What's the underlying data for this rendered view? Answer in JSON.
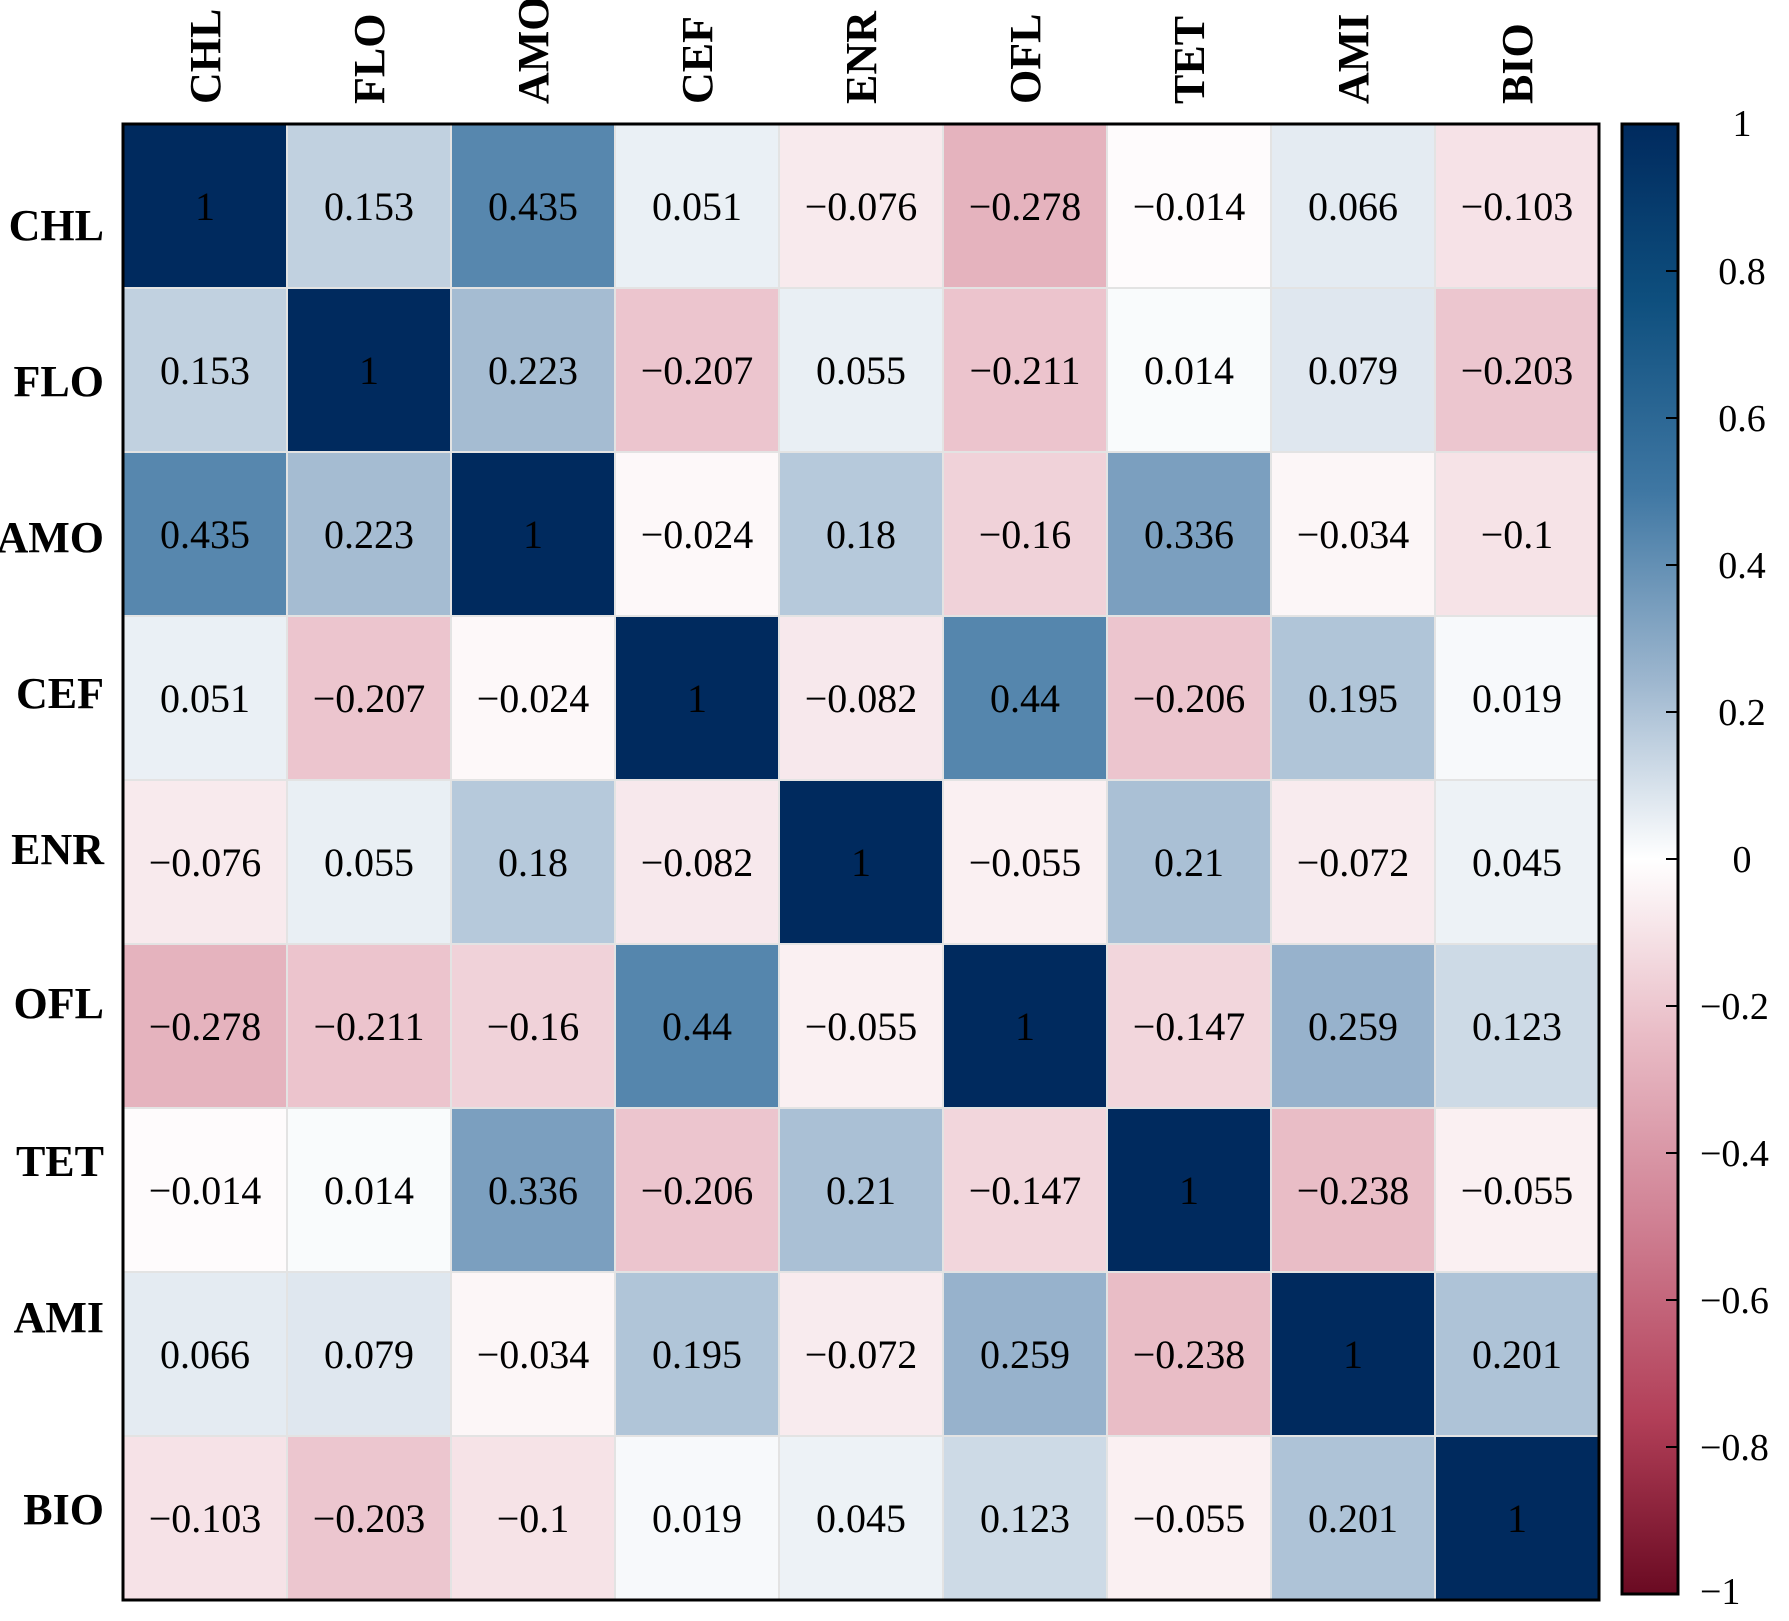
{
  "chart_data": {
    "type": "heatmap",
    "title": "",
    "variables": [
      "CHL",
      "FLO",
      "AMO",
      "CEF",
      "ENR",
      "OFL",
      "TET",
      "AMI",
      "BIO"
    ],
    "values": [
      [
        1,
        0.153,
        0.435,
        0.051,
        -0.076,
        -0.278,
        -0.014,
        0.066,
        -0.103
      ],
      [
        0.153,
        1,
        0.223,
        -0.207,
        0.055,
        -0.211,
        0.014,
        0.079,
        -0.203
      ],
      [
        0.435,
        0.223,
        1,
        -0.024,
        0.18,
        -0.16,
        0.336,
        -0.034,
        -0.1
      ],
      [
        0.051,
        -0.207,
        -0.024,
        1,
        -0.082,
        0.44,
        -0.206,
        0.195,
        0.019
      ],
      [
        -0.076,
        0.055,
        0.18,
        -0.082,
        1,
        -0.055,
        0.21,
        -0.072,
        0.045
      ],
      [
        -0.278,
        -0.211,
        -0.16,
        0.44,
        -0.055,
        1,
        -0.147,
        0.259,
        0.123
      ],
      [
        -0.014,
        0.014,
        0.336,
        -0.206,
        0.21,
        -0.147,
        1,
        -0.238,
        -0.055
      ],
      [
        0.066,
        0.079,
        -0.034,
        0.195,
        -0.072,
        0.259,
        -0.238,
        1,
        0.201
      ],
      [
        -0.103,
        -0.203,
        -0.1,
        0.019,
        0.045,
        0.123,
        -0.055,
        0.201,
        1
      ]
    ],
    "display_values": [
      [
        "1",
        "0.153",
        "0.435",
        "0.051",
        "−0.076",
        "−0.278",
        "−0.014",
        "0.066",
        "−0.103"
      ],
      [
        "0.153",
        "1",
        "0.223",
        "−0.207",
        "0.055",
        "−0.211",
        "0.014",
        "0.079",
        "−0.203"
      ],
      [
        "0.435",
        "0.223",
        "1",
        "−0.024",
        "0.18",
        "−0.16",
        "0.336",
        "−0.034",
        "−0.1"
      ],
      [
        "0.051",
        "−0.207",
        "−0.024",
        "1",
        "−0.082",
        "0.44",
        "−0.206",
        "0.195",
        "0.019"
      ],
      [
        "−0.076",
        "0.055",
        "0.18",
        "−0.082",
        "1",
        "−0.055",
        "0.21",
        "−0.072",
        "0.045"
      ],
      [
        "−0.278",
        "−0.211",
        "−0.16",
        "0.44",
        "−0.055",
        "1",
        "−0.147",
        "0.259",
        "0.123"
      ],
      [
        "−0.014",
        "0.014",
        "0.336",
        "−0.206",
        "0.21",
        "−0.147",
        "1",
        "−0.238",
        "−0.055"
      ],
      [
        "0.066",
        "0.079",
        "−0.034",
        "0.195",
        "−0.072",
        "0.259",
        "−0.238",
        "1",
        "0.201"
      ],
      [
        "−0.103",
        "−0.203",
        "−0.1",
        "0.019",
        "0.045",
        "0.123",
        "−0.055",
        "0.201",
        "1"
      ]
    ],
    "colorbar": {
      "range": [
        -1,
        1
      ],
      "ticks": [
        1,
        0.8,
        0.6,
        0.4,
        0.2,
        0,
        -0.2,
        -0.4,
        -0.6,
        -0.8,
        -1
      ],
      "tick_labels": [
        "1",
        "0.8",
        "0.6",
        "0.4",
        "0.2",
        "0",
        "−0.2",
        "−0.4",
        "−0.6",
        "−0.8",
        "−1"
      ],
      "colors": {
        "pos_end": "#053061",
        "pos_mid": "#4393c3",
        "zero": "#ffffff",
        "neg_mid": "#d6604d",
        "neg_end": "#67001f"
      }
    },
    "diagonal_color": "#002a5e",
    "cell_text_color": "#000000"
  }
}
